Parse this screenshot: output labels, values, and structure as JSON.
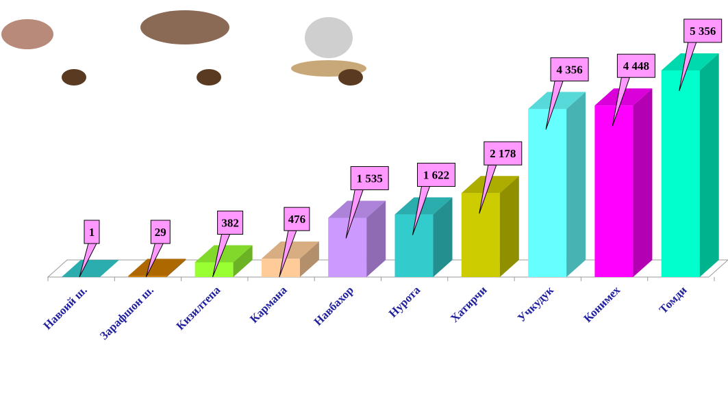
{
  "chart_data": {
    "type": "bar3d",
    "categories": [
      "Навоий ш.",
      "Зарафшон ш.",
      "Кизилтепа",
      "Кармана",
      "Навбахор",
      "Нурота",
      "Хатирчи",
      "Учкудук",
      "Конимех",
      "Томди"
    ],
    "values": [
      1,
      29,
      382,
      476,
      1535,
      1622,
      2178,
      4356,
      4448,
      5356
    ],
    "value_labels": [
      "1",
      "29",
      "382",
      "476",
      "1 535",
      "1 622",
      "2 178",
      "4 356",
      "4 448",
      "5 356"
    ],
    "colors": [
      "#33cccc",
      "#cc7a00",
      "#99ff33",
      "#ffcc99",
      "#cc99ff",
      "#33cccc",
      "#cccc00",
      "#66ffff",
      "#ff00ff",
      "#00ffcc"
    ]
  }
}
